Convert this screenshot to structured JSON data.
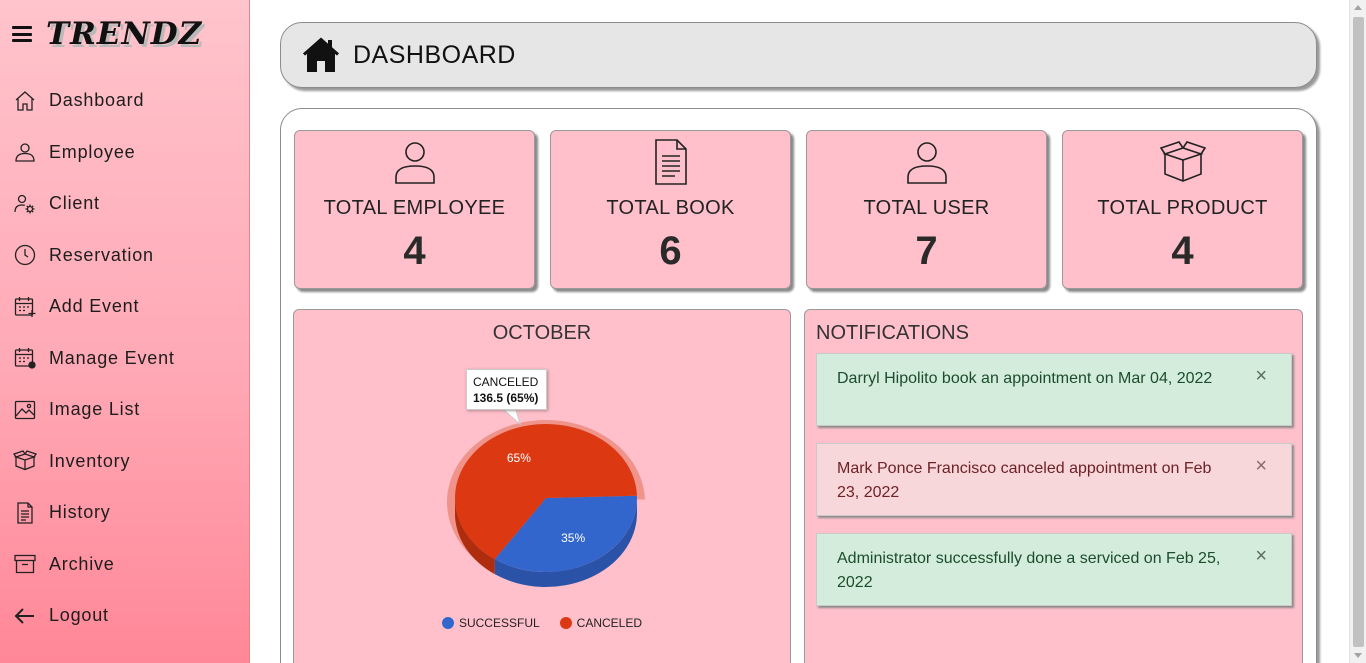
{
  "brand": {
    "name": "TRENDZ"
  },
  "sidebar": {
    "items": [
      {
        "label": "Dashboard",
        "icon": "home-icon"
      },
      {
        "label": "Employee",
        "icon": "user-icon"
      },
      {
        "label": "Client",
        "icon": "user-gear-icon"
      },
      {
        "label": "Reservation",
        "icon": "clock-icon"
      },
      {
        "label": "Add Event",
        "icon": "calendar-plus-icon"
      },
      {
        "label": "Manage Event",
        "icon": "calendar-gear-icon"
      },
      {
        "label": "Image List",
        "icon": "image-icon"
      },
      {
        "label": "Inventory",
        "icon": "box-icon"
      },
      {
        "label": "History",
        "icon": "document-icon"
      },
      {
        "label": "Archive",
        "icon": "archive-icon"
      },
      {
        "label": "Logout",
        "icon": "arrow-left-icon"
      }
    ]
  },
  "header": {
    "title": "DASHBOARD",
    "icon": "home-solid-icon"
  },
  "cards": [
    {
      "label": "TOTAL EMPLOYEE",
      "value": "4",
      "icon": "user-icon"
    },
    {
      "label": "TOTAL BOOK",
      "value": "6",
      "icon": "document-icon"
    },
    {
      "label": "TOTAL USER",
      "value": "7",
      "icon": "user-icon"
    },
    {
      "label": "TOTAL PRODUCT",
      "value": "4",
      "icon": "box-icon"
    }
  ],
  "chart_data": {
    "type": "pie",
    "title": "OCTOBER",
    "categories": [
      "SUCCESSFUL",
      "CANCELED"
    ],
    "values": [
      73.5,
      136.5
    ],
    "percent_labels": [
      "35%",
      "65%"
    ],
    "colors": [
      "#3366cc",
      "#dc3912"
    ],
    "legend": "bottom",
    "tooltip": {
      "title": "CANCELED",
      "value": "136.5 (65%)"
    }
  },
  "notifications": {
    "title": "NOTIFICATIONS",
    "items": [
      {
        "text": "Darryl Hipolito book an appointment on Mar 04, 2022",
        "type": "success"
      },
      {
        "text": "Mark Ponce Francisco canceled appointment on Feb 23, 2022",
        "type": "danger"
      },
      {
        "text": "Administrator successfully done a serviced on Feb 25, 2022",
        "type": "success"
      }
    ],
    "close_symbol": "×"
  }
}
